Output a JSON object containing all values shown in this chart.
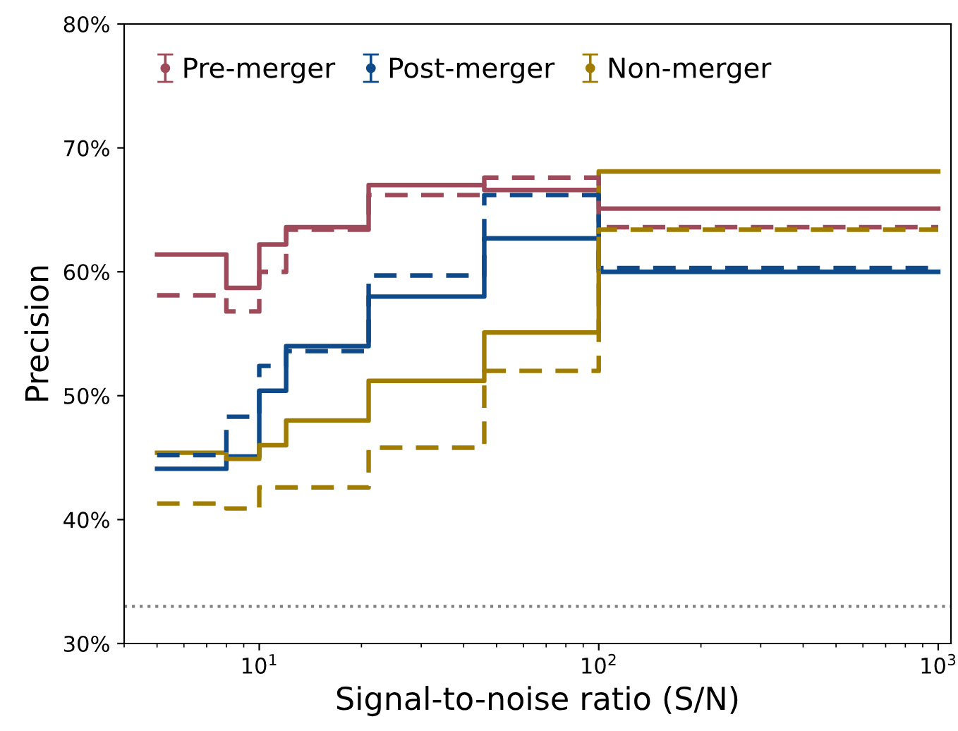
{
  "chart_data": {
    "type": "step",
    "xlabel": "Signal-to-noise ratio (S/N)",
    "ylabel": "Precision",
    "log": "x",
    "xlim": [
      4,
      1090
    ],
    "ylim": [
      30,
      80
    ],
    "xticks": [
      {
        "value": 10,
        "label": "10$^{1}$"
      },
      {
        "value": 100,
        "label": "10$^{2}$"
      },
      {
        "value": 1000,
        "label": "10$^{3}$"
      }
    ],
    "yticks": [
      {
        "value": 30,
        "label": "30%"
      },
      {
        "value": 40,
        "label": "40%"
      },
      {
        "value": 50,
        "label": "50%"
      },
      {
        "value": 60,
        "label": "60%"
      },
      {
        "value": 70,
        "label": "70%"
      },
      {
        "value": 80,
        "label": "80%"
      }
    ],
    "grid": false,
    "legend": "top left",
    "series": [
      {
        "name": "Pre-merger",
        "color": "#9e4a5a",
        "line_style": "solid",
        "x": [
          5,
          8,
          10,
          12,
          21,
          46,
          100,
          1000
        ],
        "values": [
          61.4,
          58.7,
          62.2,
          63.6,
          67.0,
          66.6,
          65.1,
          65.1
        ]
      },
      {
        "name": "Post-merger",
        "color": "#0e4a8a",
        "line_style": "solid",
        "x": [
          5,
          8,
          10,
          12,
          21,
          46,
          100,
          1000
        ],
        "values": [
          44.1,
          45.1,
          50.4,
          54.0,
          58.0,
          62.7,
          60.0,
          60.0
        ]
      },
      {
        "name": "Non-merger",
        "color": "#a07c00",
        "line_style": "solid",
        "x": [
          5,
          8,
          10,
          12,
          21,
          46,
          100,
          1000
        ],
        "values": [
          45.4,
          44.9,
          46.0,
          48.0,
          51.2,
          55.1,
          68.1,
          68.1
        ]
      },
      {
        "color": "#9e4a5a",
        "line_style": "dashed",
        "x": [
          5,
          8,
          10,
          12,
          21,
          46,
          100,
          1000
        ],
        "values": [
          58.1,
          56.8,
          60.0,
          63.4,
          66.2,
          67.6,
          63.6,
          63.6
        ]
      },
      {
        "color": "#0e4a8a",
        "line_style": "dashed",
        "x": [
          5,
          8,
          10,
          12,
          21,
          46,
          100,
          1000
        ],
        "values": [
          45.2,
          48.3,
          52.4,
          53.6,
          59.7,
          66.2,
          60.3,
          60.3
        ]
      },
      {
        "color": "#a07c00",
        "line_style": "dashed",
        "x": [
          5,
          8,
          10,
          12,
          21,
          46,
          100,
          1000
        ],
        "values": [
          41.3,
          40.9,
          42.6,
          42.6,
          45.8,
          52.0,
          63.4,
          63.4
        ]
      }
    ],
    "ref_lines": [
      {
        "axis": "y",
        "value": 33,
        "color": "#808080",
        "line_style": "dotted"
      }
    ]
  }
}
